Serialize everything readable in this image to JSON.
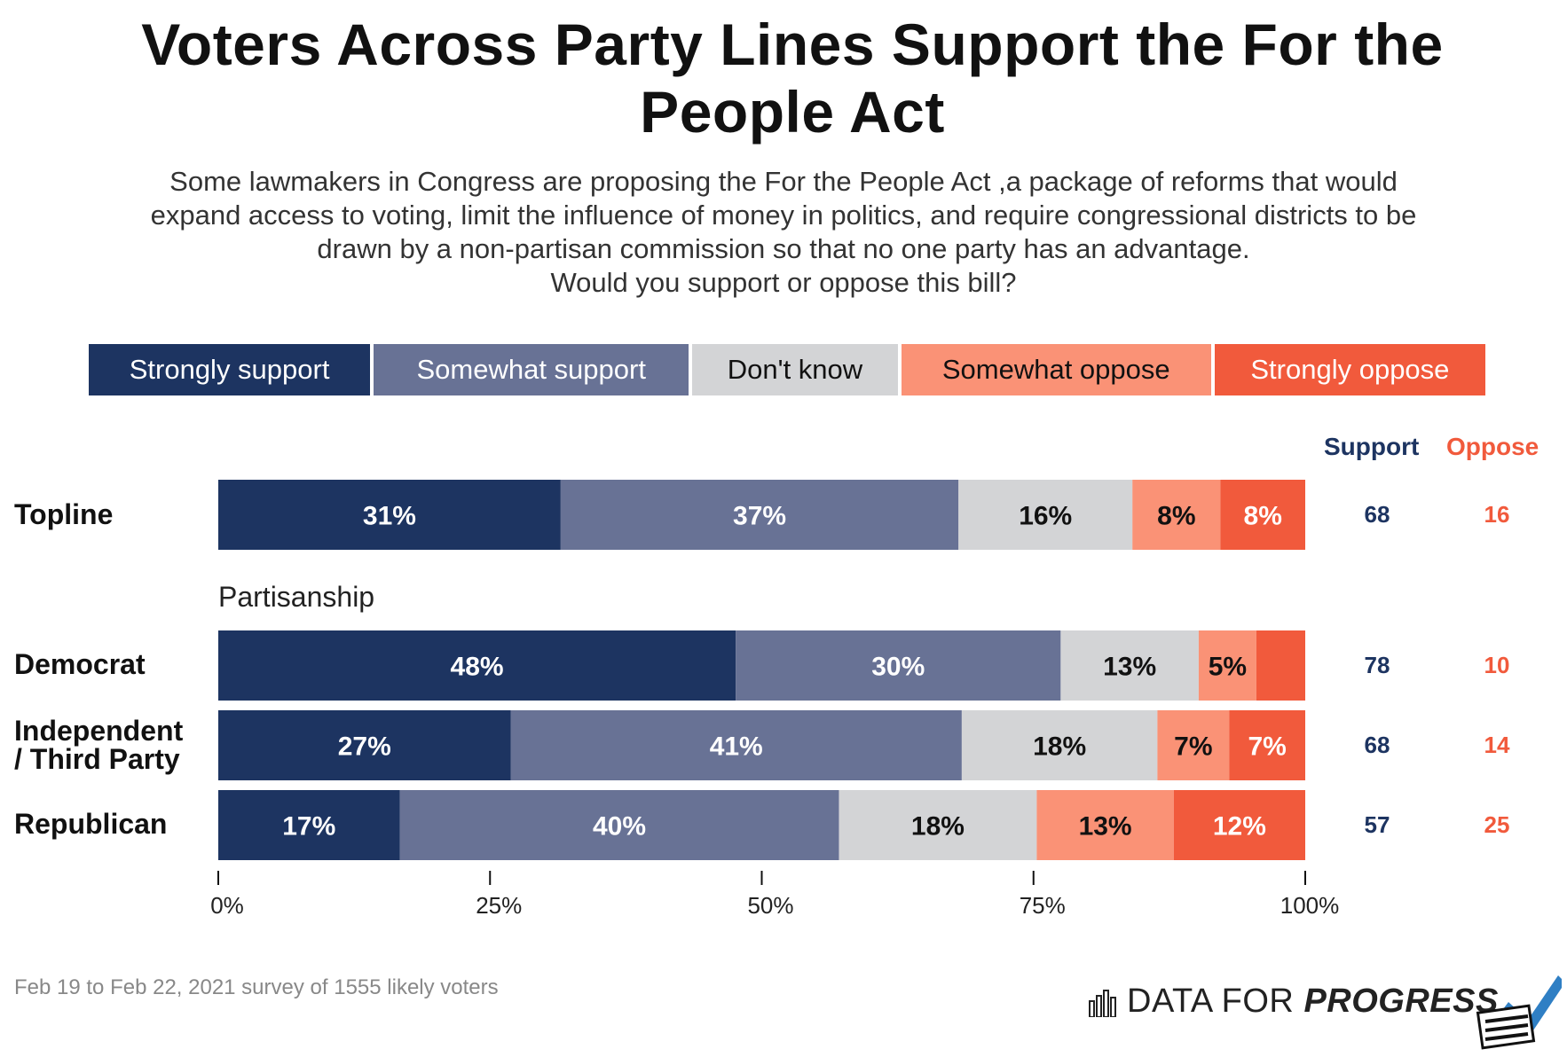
{
  "title": "Voters Across Party Lines Support the For the People Act",
  "subtitle_lines": [
    "Some lawmakers in Congress are proposing the For the People Act ,a package of reforms that would",
    "expand access to voting, limit the influence of money in politics, and require congressional districts to be",
    "drawn by a non-partisan commission so that no one party has an advantage.",
    "Would you support or oppose this bill?"
  ],
  "legend": [
    {
      "label": "Strongly support",
      "color": "#1d3461",
      "text": "#ffffff"
    },
    {
      "label": "Somewhat support",
      "color": "#687295",
      "text": "#ffffff"
    },
    {
      "label": "Don't know",
      "color": "#d3d4d6",
      "text": "#111111"
    },
    {
      "label": "Somewhat oppose",
      "color": "#fa9276",
      "text": "#111111"
    },
    {
      "label": "Strongly oppose",
      "color": "#f15a3c",
      "text": "#ffffff"
    }
  ],
  "columns": {
    "support": "Support",
    "oppose": "Oppose"
  },
  "group_label": "Partisanship",
  "source": "Feb 19 to Feb 22, 2021 survey of 1555 likely voters",
  "brand": {
    "plain": "DATA FOR ",
    "bold": "PROGRESS"
  },
  "colors": {
    "support": "#1d3461",
    "oppose": "#f15a3c"
  },
  "chart_data": {
    "type": "bar",
    "stacked": true,
    "orientation": "horizontal",
    "xlim": [
      0,
      100
    ],
    "x_ticks": [
      "0%",
      "25%",
      "50%",
      "75%",
      "100%"
    ],
    "series_names": [
      "Strongly support",
      "Somewhat support",
      "Don't know",
      "Somewhat oppose",
      "Strongly oppose"
    ],
    "rows": [
      {
        "label": "Topline",
        "values": [
          31.5,
          36.6,
          16.0,
          8.1,
          7.8
        ],
        "labels": [
          "31%",
          "37%",
          "16%",
          "8%",
          "8%"
        ],
        "support": "68",
        "oppose": "16"
      },
      {
        "label": "Democrat",
        "values": [
          47.6,
          29.9,
          12.7,
          5.3,
          4.5
        ],
        "labels": [
          "48%",
          "30%",
          "13%",
          "5%",
          ""
        ],
        "support": "78",
        "oppose": "10"
      },
      {
        "label": "Independent / Third Party",
        "label_lines": [
          "Independent",
          "/ Third Party"
        ],
        "values": [
          26.9,
          41.5,
          18.0,
          6.6,
          7.0
        ],
        "labels": [
          "27%",
          "41%",
          "18%",
          "7%",
          "7%"
        ],
        "support": "68",
        "oppose": "14"
      },
      {
        "label": "Republican",
        "values": [
          16.7,
          40.4,
          18.2,
          12.6,
          12.1
        ],
        "labels": [
          "17%",
          "40%",
          "18%",
          "13%",
          "12%"
        ],
        "support": "57",
        "oppose": "25"
      }
    ]
  }
}
